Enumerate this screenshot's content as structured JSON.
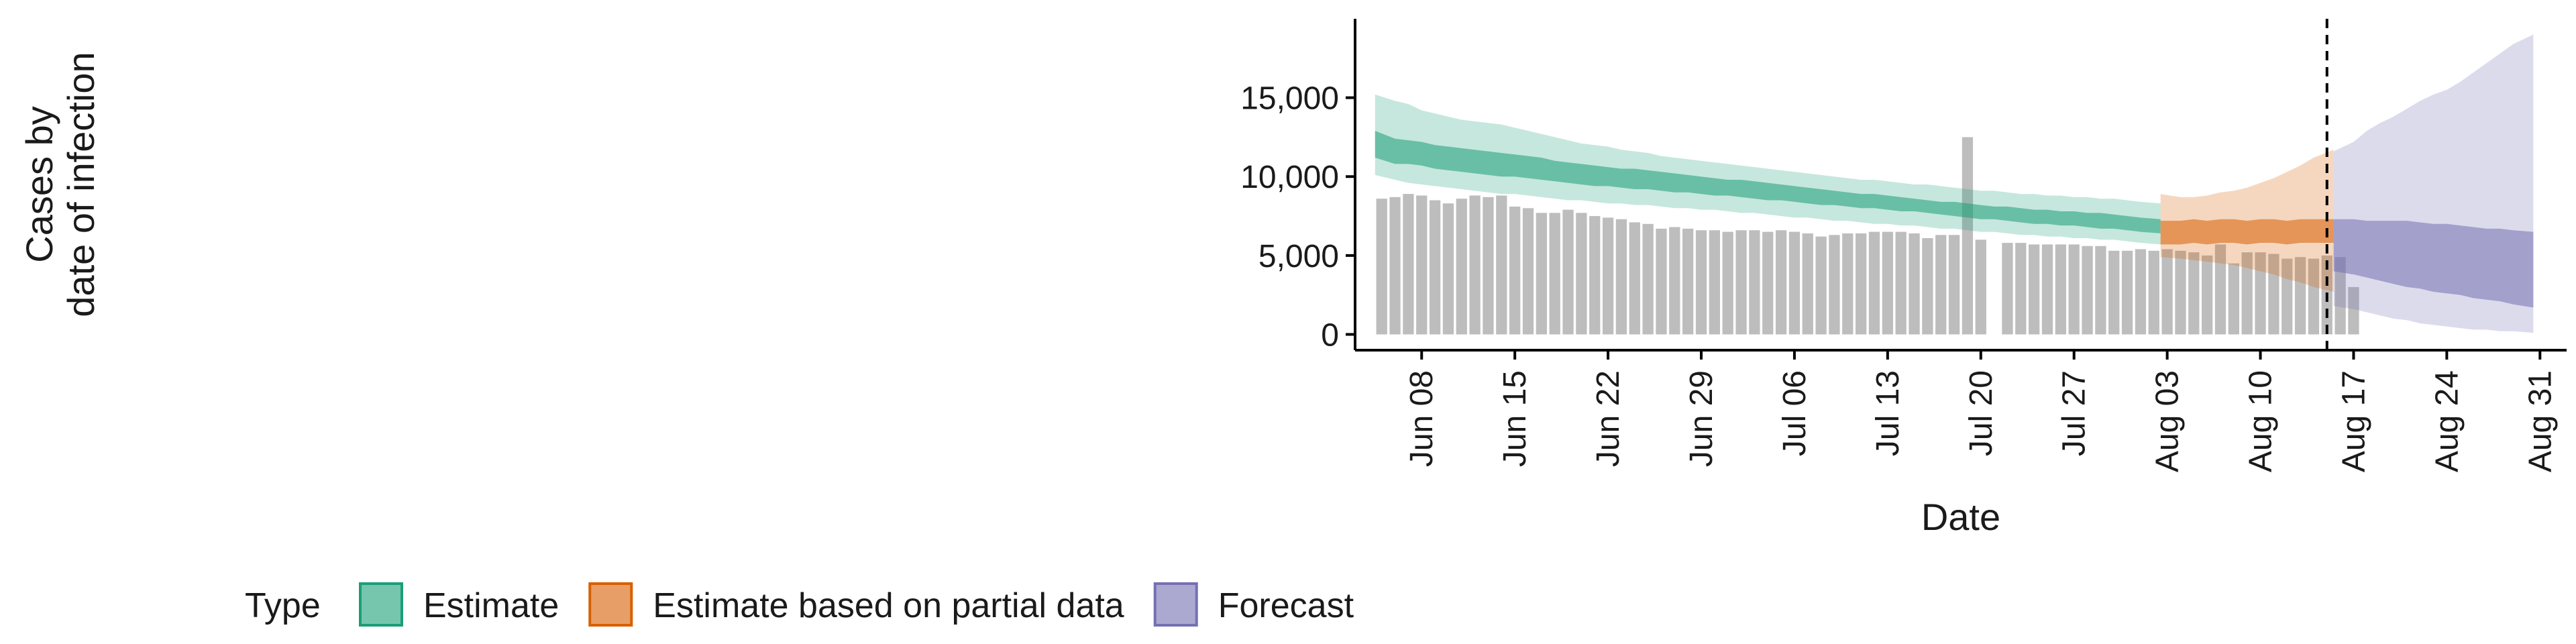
{
  "chart_data": {
    "type": "bar",
    "xlabel": "Date",
    "ylabel_lines": [
      "Cases by",
      "date of infection"
    ],
    "y_ticks": [
      {
        "value": 0,
        "label": "0"
      },
      {
        "value": 5000,
        "label": "5,000"
      },
      {
        "value": 10000,
        "label": "10,000"
      },
      {
        "value": 15000,
        "label": "15,000"
      }
    ],
    "ylim": [
      -1000,
      20000
    ],
    "xlim": [
      "2020-06-03",
      "2020-09-02"
    ],
    "x_ticks": [
      {
        "date": "2020-06-08",
        "label": "Jun 08"
      },
      {
        "date": "2020-06-15",
        "label": "Jun 15"
      },
      {
        "date": "2020-06-22",
        "label": "Jun 22"
      },
      {
        "date": "2020-06-29",
        "label": "Jun 29"
      },
      {
        "date": "2020-07-06",
        "label": "Jul 06"
      },
      {
        "date": "2020-07-13",
        "label": "Jul 13"
      },
      {
        "date": "2020-07-20",
        "label": "Jul 20"
      },
      {
        "date": "2020-07-27",
        "label": "Jul 27"
      },
      {
        "date": "2020-08-03",
        "label": "Aug 03"
      },
      {
        "date": "2020-08-10",
        "label": "Aug 10"
      },
      {
        "date": "2020-08-17",
        "label": "Aug 17"
      },
      {
        "date": "2020-08-24",
        "label": "Aug 24"
      },
      {
        "date": "2020-08-31",
        "label": "Aug 31"
      }
    ],
    "cutoff_date": "2020-08-15",
    "observed_cases": {
      "start_date": "2020-06-05",
      "values": [
        8600,
        8700,
        8900,
        8800,
        8500,
        8300,
        8600,
        8800,
        8700,
        8800,
        8100,
        8000,
        7700,
        7700,
        7900,
        7700,
        7500,
        7400,
        7300,
        7100,
        7000,
        6700,
        6800,
        6700,
        6600,
        6600,
        6500,
        6600,
        6600,
        6500,
        6600,
        6500,
        6400,
        6200,
        6300,
        6400,
        6400,
        6500,
        6500,
        6500,
        6400,
        6100,
        6300,
        6300,
        12500,
        6000,
        null,
        5800,
        5800,
        5700,
        5700,
        5700,
        5700,
        5600,
        5600,
        5300,
        5300,
        5400,
        5300,
        5400,
        5300,
        5200,
        5000,
        5700,
        4500,
        5200,
        5200,
        5100,
        4800,
        4900,
        4800,
        5000,
        4900,
        3000
      ]
    },
    "series": [
      {
        "name": "Estimate",
        "color": "#1b9e77",
        "start_date": "2020-06-05",
        "median_low": [
          11200,
          10800,
          10800,
          10700,
          10500,
          10400,
          10300,
          10200,
          10100,
          10000,
          10000,
          9900,
          9800,
          9700,
          9600,
          9500,
          9400,
          9400,
          9300,
          9200,
          9200,
          9100,
          9000,
          9000,
          8900,
          8800,
          8800,
          8700,
          8600,
          8500,
          8500,
          8400,
          8300,
          8200,
          8200,
          8100,
          8000,
          8000,
          7900,
          7800,
          7800,
          7700,
          7600,
          7500,
          7400,
          7300,
          7300,
          7200,
          7100,
          7000,
          7000,
          6900,
          6900,
          6800,
          6700,
          6700,
          6600,
          6500,
          6400
        ],
        "median_high": [
          12900,
          12400,
          12300,
          12200,
          12000,
          11900,
          11800,
          11700,
          11600,
          11500,
          11400,
          11300,
          11200,
          11000,
          10900,
          10800,
          10700,
          10600,
          10500,
          10500,
          10400,
          10300,
          10200,
          10100,
          10000,
          9900,
          9800,
          9800,
          9700,
          9600,
          9500,
          9400,
          9300,
          9200,
          9100,
          9000,
          8900,
          8900,
          8800,
          8700,
          8600,
          8500,
          8400,
          8400,
          8300,
          8200,
          8100,
          8100,
          8000,
          7900,
          7900,
          7800,
          7800,
          7700,
          7700,
          7600,
          7500,
          7400,
          7300
        ],
        "ci_low": [
          10100,
          9800,
          9600,
          9500,
          9400,
          9300,
          9200,
          9100,
          9000,
          8900,
          8900,
          8800,
          8700,
          8600,
          8500,
          8500,
          8400,
          8300,
          8300,
          8200,
          8200,
          8100,
          8000,
          8000,
          7900,
          7900,
          7800,
          7700,
          7700,
          7600,
          7500,
          7400,
          7400,
          7300,
          7200,
          7200,
          7100,
          7000,
          7000,
          6900,
          6900,
          6800,
          6700,
          6700,
          6600,
          6500,
          6500,
          6400,
          6300,
          6300,
          6200,
          6200,
          6100,
          6100,
          6000,
          6000,
          5900,
          5800,
          5700
        ],
        "ci_high": [
          15200,
          14800,
          14600,
          14200,
          14000,
          13800,
          13600,
          13500,
          13400,
          13300,
          13100,
          12900,
          12700,
          12500,
          12300,
          12100,
          12000,
          11900,
          11700,
          11600,
          11500,
          11300,
          11200,
          11100,
          11000,
          10900,
          10800,
          10700,
          10600,
          10500,
          10400,
          10300,
          10200,
          10100,
          10000,
          9900,
          9800,
          9800,
          9700,
          9600,
          9500,
          9500,
          9400,
          9300,
          9200,
          9100,
          9100,
          9000,
          8900,
          8900,
          8800,
          8800,
          8700,
          8700,
          8600,
          8600,
          8500,
          8400,
          8300
        ]
      },
      {
        "name": "Estimate based on partial data",
        "color": "#d95f02",
        "start_date": "2020-08-03",
        "median_low": [
          5700,
          5700,
          5800,
          5700,
          5800,
          5800,
          5700,
          5800,
          5800,
          5700,
          5800,
          5800,
          5800
        ],
        "median_high": [
          7200,
          7200,
          7300,
          7200,
          7300,
          7300,
          7200,
          7300,
          7300,
          7200,
          7300,
          7300,
          7300
        ],
        "ci_low": [
          4900,
          4800,
          4700,
          4600,
          4500,
          4400,
          4200,
          4000,
          3800,
          3500,
          3300,
          3000,
          2700
        ],
        "ci_high": [
          8900,
          8700,
          8700,
          8800,
          9000,
          9100,
          9300,
          9600,
          9900,
          10300,
          10700,
          11200,
          11700
        ]
      },
      {
        "name": "Forecast",
        "color": "#7570b3",
        "start_date": "2020-08-16",
        "median_low": [
          4000,
          3800,
          3600,
          3400,
          3200,
          3000,
          2900,
          2700,
          2600,
          2500,
          2300,
          2200,
          2100,
          1900,
          1700
        ],
        "median_high": [
          7300,
          7300,
          7200,
          7200,
          7200,
          7200,
          7100,
          7000,
          7000,
          6900,
          6800,
          6700,
          6700,
          6600,
          6500
        ],
        "ci_low": [
          1800,
          1600,
          1400,
          1200,
          1000,
          900,
          700,
          600,
          500,
          400,
          300,
          300,
          200,
          200,
          100
        ],
        "ci_high": [
          11600,
          12200,
          12900,
          13400,
          13800,
          14300,
          14800,
          15200,
          15500,
          16000,
          16600,
          17200,
          17800,
          18400,
          19000
        ]
      }
    ],
    "legend": {
      "title": "Type",
      "placement": "bottom",
      "items": [
        "Estimate",
        "Estimate based on partial data",
        "Forecast"
      ]
    },
    "colors": {
      "bar": "#bdbdbd",
      "axis": "#000000"
    }
  }
}
